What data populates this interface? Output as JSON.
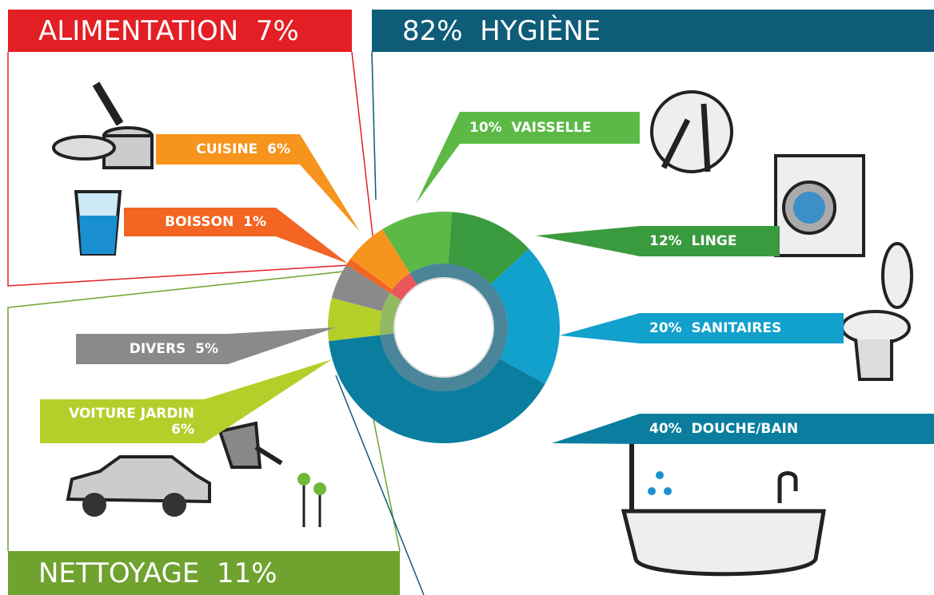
{
  "chart_data": {
    "type": "pie",
    "groups": {
      "values": [
        82,
        11,
        7
      ],
      "value_labels": [
        "82%  HYGIÈNE",
        "NETTOYAGE  11%",
        "ALIMENTATION  7%"
      ],
      "colors": [
        "#0e5c78",
        "#6fa22e",
        "#e31e25"
      ]
    },
    "segments": {
      "values": [
        10,
        12,
        20,
        40,
        6,
        5,
        1,
        6
      ],
      "value_labels": [
        "10%  VAISSELLE",
        "12%  LINGE",
        "20%  SANITAIRES",
        "40%  DOUCHE/BAIN",
        "VOITURE JARDIN  6%",
        "DIVERS  5%",
        "BOISSON  1%",
        "CUISINE  6%"
      ],
      "colors": [
        "#5cb946",
        "#3a9a3e",
        "#12a0cc",
        "#0b7ea0",
        "#b5cf2a",
        "#8a8a8a",
        "#f26522",
        "#f7941d"
      ]
    }
  }
}
